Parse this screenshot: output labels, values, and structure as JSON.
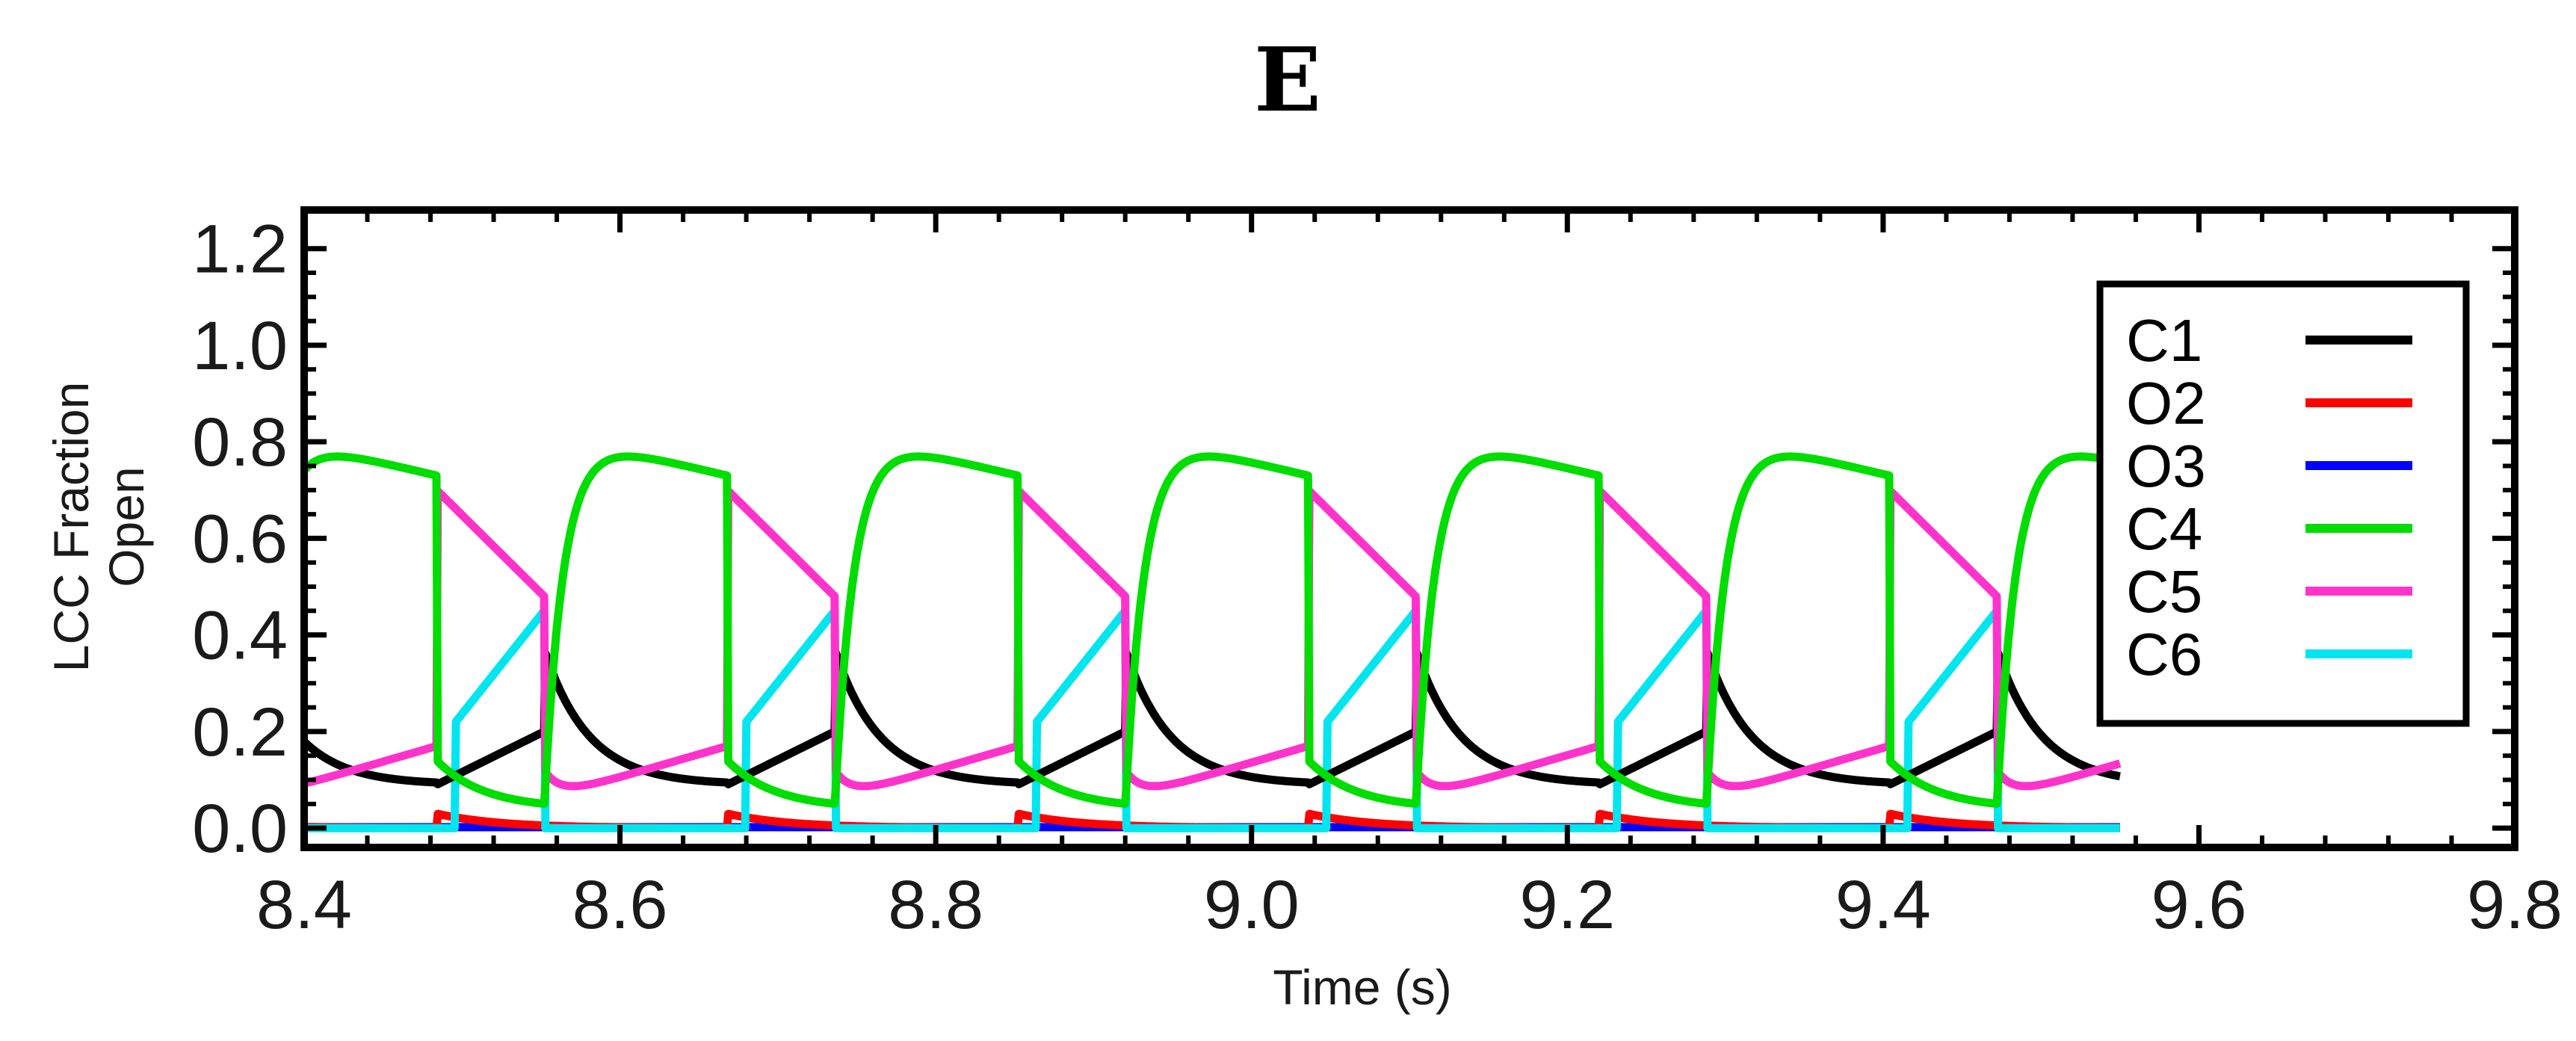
{
  "chart_data": {
    "type": "line",
    "panel_label": "E",
    "title": "",
    "xlabel": "Time (s)",
    "ylabel_lines": [
      "LCC Fraction",
      "Open"
    ],
    "xlim": [
      8.4,
      9.8
    ],
    "ylim": [
      -0.04,
      1.28
    ],
    "x_ticks": [
      8.4,
      8.6,
      8.8,
      9.0,
      9.2,
      9.4,
      9.6,
      9.8
    ],
    "x_tick_labels": [
      "8.4",
      "8.6",
      "8.8",
      "9.0",
      "9.2",
      "9.4",
      "9.6",
      "9.8"
    ],
    "y_ticks": [
      0.0,
      0.2,
      0.4,
      0.6,
      0.8,
      1.0,
      1.2
    ],
    "y_tick_labels": [
      "0.0",
      "0.2",
      "0.4",
      "0.6",
      "0.8",
      "1.0",
      "1.2"
    ],
    "legend_position": "right",
    "grid": false,
    "cycle": {
      "start_times": [
        8.484,
        8.668,
        8.852,
        9.036,
        9.22,
        9.404
      ],
      "C4_min_value": 0.04,
      "C4_peak_value": 0.82,
      "C5_peak_value": 0.7,
      "C6_peak_value": 0.45,
      "C1_peak_value": 0.37,
      "O2_peak_value": 0.03,
      "data_end_time": 9.55
    },
    "series": [
      {
        "name": "C1",
        "color": "#000000",
        "description": "closed state; peaks ~0.37 after each C4 rise, baseline ~0.10"
      },
      {
        "name": "O2",
        "color": "#ff0000",
        "description": "open state; ~0.0-0.03"
      },
      {
        "name": "O3",
        "color": "#0000ff",
        "description": "open state; ~0.0"
      },
      {
        "name": "C4",
        "color": "#00dd00",
        "description": "closed state; oscillates between ~0.04 and ~0.82"
      },
      {
        "name": "C5",
        "color": "#ff33cc",
        "description": "closed state; jumps to ~0.70 then decays to ~0.48"
      },
      {
        "name": "C6",
        "color": "#00e5ee",
        "description": "closed state; ramps up to ~0.45 then drops to 0"
      }
    ]
  }
}
